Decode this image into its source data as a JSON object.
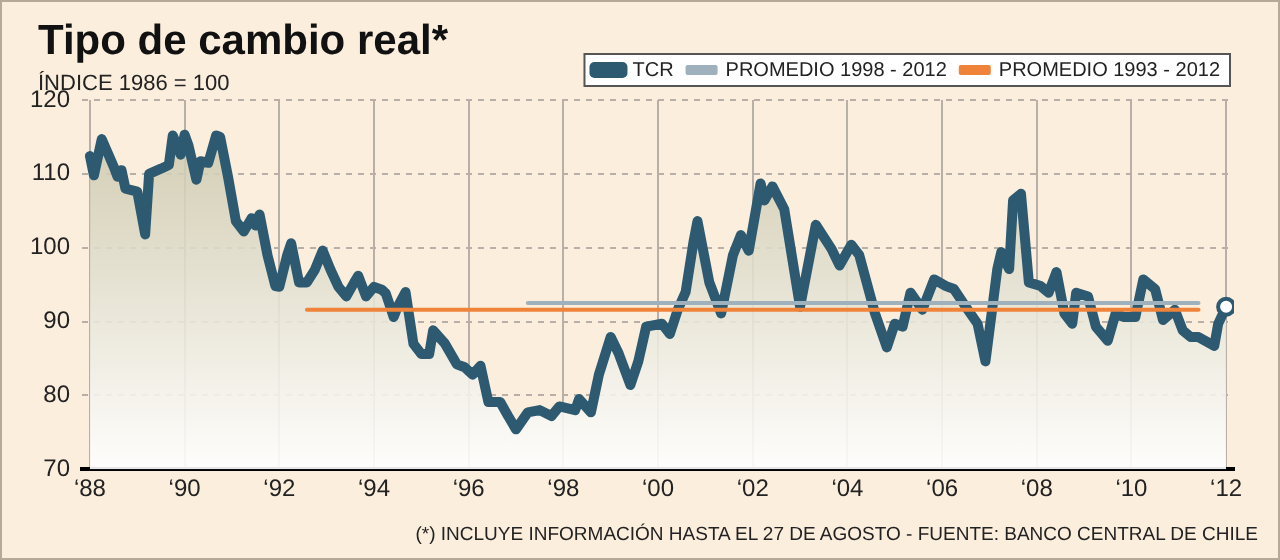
{
  "chart_data": {
    "type": "area",
    "title": "Tipo de cambio real*",
    "subtitle": "ÍNDICE 1986 = 100",
    "annotations": [
      "(*) INCLUYE INFORMACIÓN HASTA EL 27 DE AGOSTO - FUENTE: BANCO CENTRAL DE CHILE"
    ],
    "xlim": [
      "1987-11",
      "2012-03"
    ],
    "xticks": [
      {
        "value": "1988",
        "label": "‘88"
      },
      {
        "value": "1990",
        "label": "‘90"
      },
      {
        "value": "1992",
        "label": "‘92"
      },
      {
        "value": "1994",
        "label": "‘94"
      },
      {
        "value": "1996",
        "label": "‘96"
      },
      {
        "value": "1998",
        "label": "‘98"
      },
      {
        "value": "2000",
        "label": "‘00"
      },
      {
        "value": "2002",
        "label": "‘02"
      },
      {
        "value": "2004",
        "label": "‘04"
      },
      {
        "value": "2006",
        "label": "‘06"
      },
      {
        "value": "2008",
        "label": "‘08"
      },
      {
        "value": "2010",
        "label": "‘10"
      },
      {
        "value": "2012",
        "label": "‘12"
      }
    ],
    "ylim": [
      70,
      120
    ],
    "yticks": [
      70,
      80,
      90,
      100,
      110,
      120
    ],
    "grid": true,
    "legend": "top right",
    "line_style": "solid",
    "series": [
      {
        "name": "TCR",
        "color": "#2d5a70",
        "x": [
          "1988-01",
          "1988-02",
          "1988-04",
          "1988-07",
          "1988-08",
          "1988-09",
          "1988-10",
          "1989-01",
          "1989-03",
          "1989-04",
          "1989-07",
          "1989-09",
          "1989-10",
          "1989-12",
          "1990-01",
          "1990-02",
          "1990-04",
          "1990-05",
          "1990-07",
          "1990-09",
          "1990-10",
          "1990-12",
          "1991-02",
          "1991-04",
          "1991-06",
          "1991-07",
          "1991-08",
          "1991-10",
          "1991-12",
          "1992-01",
          "1992-03",
          "1992-04",
          "1992-06",
          "1992-08",
          "1992-10",
          "1992-12",
          "1993-02",
          "1993-04",
          "1993-06",
          "1993-08",
          "1993-09",
          "1993-11",
          "1994-01",
          "1994-03",
          "1994-04",
          "1994-06",
          "1994-07",
          "1994-09",
          "1994-11",
          "1995-01",
          "1995-03",
          "1995-04",
          "1995-07",
          "1995-10",
          "1995-12",
          "1996-02",
          "1996-04",
          "1996-06",
          "1996-09",
          "1996-11",
          "1997-01",
          "1997-04",
          "1997-07",
          "1997-10",
          "1997-12",
          "1998-04",
          "1998-05",
          "1998-08",
          "1998-10",
          "1999-01",
          "1999-03",
          "1999-06",
          "1999-08",
          "1999-10",
          "2000-02",
          "2000-04",
          "2000-06",
          "2000-08",
          "2000-10",
          "2000-11",
          "2001-02",
          "2001-05",
          "2001-08",
          "2001-10",
          "2001-12",
          "2002-03",
          "2002-04",
          "2002-06",
          "2002-09",
          "2003-01",
          "2003-05",
          "2003-09",
          "2003-11",
          "2004-02",
          "2004-04",
          "2004-08",
          "2004-11",
          "2005-01",
          "2005-03",
          "2005-05",
          "2005-08",
          "2005-11",
          "2006-02",
          "2006-04",
          "2006-07",
          "2006-10",
          "2006-12",
          "2007-03",
          "2007-04",
          "2007-06",
          "2007-07",
          "2007-09",
          "2007-11",
          "2008-02",
          "2008-04",
          "2008-06",
          "2008-08",
          "2008-10",
          "2008-11",
          "2009-02",
          "2009-04",
          "2009-07",
          "2009-09",
          "2009-11",
          "2010-02",
          "2010-04",
          "2010-07",
          "2010-09",
          "2010-12",
          "2011-02",
          "2011-04",
          "2011-06",
          "2011-10",
          "2011-11",
          "2012-01"
        ],
        "values": [
          112.4,
          109.8,
          114.7,
          111,
          109.6,
          110.5,
          108,
          107.6,
          101.8,
          110,
          110.7,
          111.2,
          115.2,
          112.6,
          115.3,
          113.8,
          109.2,
          111.7,
          111.5,
          115.2,
          115,
          109.6,
          103.6,
          102.2,
          104,
          103,
          104.5,
          99,
          94.8,
          94.7,
          99,
          100.6,
          95.3,
          95.3,
          97,
          99.6,
          97,
          94.7,
          93.4,
          95.3,
          96.2,
          93.4,
          94.7,
          94.3,
          93.8,
          90.6,
          92,
          94,
          87,
          85.6,
          85.6,
          88.8,
          87,
          84.2,
          83.8,
          82.8,
          84,
          79.1,
          79.1,
          77.2,
          75.4,
          77.7,
          78,
          77.2,
          78.5,
          78,
          79.5,
          77.7,
          82.8,
          87.9,
          85.7,
          81.4,
          84.6,
          89.3,
          89.7,
          88.3,
          91.6,
          94,
          100.8,
          103.6,
          95.3,
          91.1,
          99,
          101.7,
          99.6,
          108.7,
          106.4,
          108.3,
          105.2,
          92,
          103.1,
          99.8,
          97.6,
          100.4,
          99,
          91.1,
          86.5,
          89.7,
          89.3,
          93.9,
          91.6,
          95.7,
          94.8,
          94.4,
          92,
          89.7,
          84.6,
          97.1,
          99.4,
          97.1,
          106.4,
          107.3,
          95.3,
          94.8,
          93.9,
          96.7,
          91.1,
          89.7,
          93.9,
          93.4,
          89.3,
          87.4,
          91.1,
          90.6,
          90.6,
          95.7,
          94.4,
          90.2,
          91.6,
          88.8,
          87.9,
          87.9,
          86.7,
          89.7,
          92
        ]
      },
      {
        "name": "PROMEDIO 1998 - 2012",
        "type": "line",
        "color": "#9fb1bc",
        "x": [
          "1997-04",
          "2011-06"
        ],
        "values": [
          92.5,
          92.5
        ]
      },
      {
        "name": "PROMEDIO 1993 - 2012",
        "type": "line",
        "color": "#f0833a",
        "x": [
          "1992-08",
          "2011-06"
        ],
        "values": [
          91.6,
          91.6
        ]
      }
    ]
  }
}
